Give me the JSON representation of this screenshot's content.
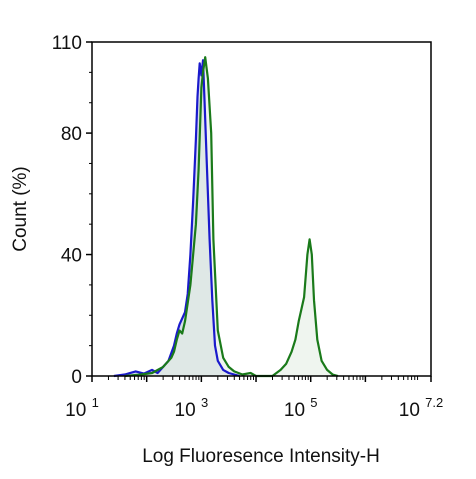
{
  "chart_data": {
    "type": "area",
    "xlabel": "Log Fluoresence Intensity-H",
    "ylabel": "Count  (%)",
    "x_scale": "log",
    "xlim_log10": [
      1,
      7.2
    ],
    "ylim": [
      0,
      110
    ],
    "y_ticks": [
      {
        "value": 0,
        "label": "0"
      },
      {
        "value": 40,
        "label": "40"
      },
      {
        "value": 80,
        "label": "80"
      },
      {
        "value": 110,
        "label": "110"
      }
    ],
    "x_ticks": [
      {
        "exp": 1,
        "base": "10",
        "sup": "1"
      },
      {
        "exp": 3,
        "base": "10",
        "sup": "3"
      },
      {
        "exp": 5,
        "base": "10",
        "sup": "5"
      },
      {
        "exp": 7.2,
        "base": "10",
        "sup": "7.2"
      }
    ],
    "grid": false,
    "legend": "none",
    "series": [
      {
        "color": "#1a1acc",
        "fill": "#d3dae6",
        "filled": true,
        "points": [
          [
            1.4,
            0
          ],
          [
            1.6,
            0.5
          ],
          [
            1.8,
            1.5
          ],
          [
            1.95,
            0.8
          ],
          [
            2.1,
            2
          ],
          [
            2.2,
            1
          ],
          [
            2.3,
            3
          ],
          [
            2.4,
            5
          ],
          [
            2.5,
            10
          ],
          [
            2.55,
            14
          ],
          [
            2.6,
            17
          ],
          [
            2.7,
            21
          ],
          [
            2.75,
            27
          ],
          [
            2.8,
            40
          ],
          [
            2.85,
            58
          ],
          [
            2.9,
            78
          ],
          [
            2.93,
            92
          ],
          [
            2.95,
            98
          ],
          [
            2.97,
            103
          ],
          [
            3.0,
            99
          ],
          [
            3.03,
            104
          ],
          [
            3.06,
            90
          ],
          [
            3.1,
            70
          ],
          [
            3.15,
            45
          ],
          [
            3.2,
            25
          ],
          [
            3.25,
            10
          ],
          [
            3.3,
            5
          ],
          [
            3.4,
            2
          ],
          [
            3.5,
            1
          ],
          [
            3.6,
            0.5
          ],
          [
            3.7,
            0
          ]
        ]
      },
      {
        "color": "#1a7a1a",
        "fill": "#e4efe4",
        "filled": true,
        "points": [
          [
            1.6,
            0
          ],
          [
            1.9,
            0.5
          ],
          [
            2.1,
            1
          ],
          [
            2.3,
            3
          ],
          [
            2.45,
            6
          ],
          [
            2.5,
            8
          ],
          [
            2.55,
            12
          ],
          [
            2.6,
            15
          ],
          [
            2.65,
            14
          ],
          [
            2.7,
            18
          ],
          [
            2.8,
            30
          ],
          [
            2.9,
            50
          ],
          [
            2.95,
            68
          ],
          [
            3.0,
            95
          ],
          [
            3.03,
            100
          ],
          [
            3.07,
            105
          ],
          [
            3.12,
            98
          ],
          [
            3.18,
            80
          ],
          [
            3.22,
            45
          ],
          [
            3.3,
            15
          ],
          [
            3.4,
            6
          ],
          [
            3.5,
            3
          ],
          [
            3.6,
            1.5
          ],
          [
            3.75,
            0.5
          ],
          [
            3.9,
            1
          ],
          [
            4.0,
            0
          ],
          [
            4.3,
            0
          ],
          [
            4.45,
            2
          ],
          [
            4.55,
            4
          ],
          [
            4.65,
            8
          ],
          [
            4.72,
            12
          ],
          [
            4.78,
            18
          ],
          [
            4.83,
            22
          ],
          [
            4.88,
            26
          ],
          [
            4.94,
            40
          ],
          [
            4.98,
            45
          ],
          [
            5.02,
            40
          ],
          [
            5.06,
            25
          ],
          [
            5.12,
            12
          ],
          [
            5.2,
            5
          ],
          [
            5.3,
            2
          ],
          [
            5.4,
            0.5
          ],
          [
            5.5,
            0
          ]
        ]
      }
    ]
  }
}
